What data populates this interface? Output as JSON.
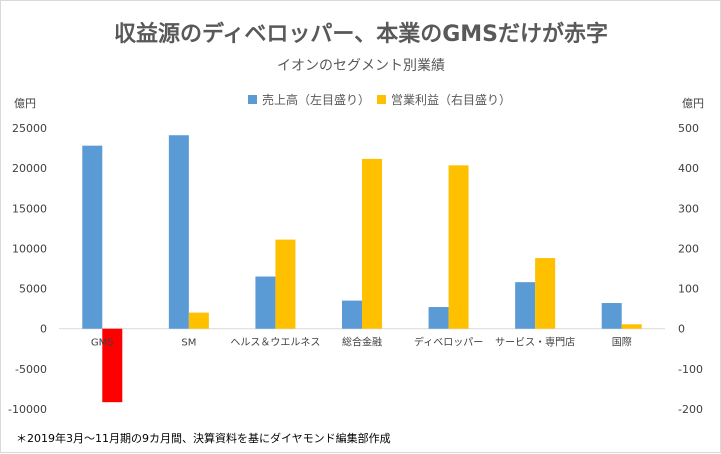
{
  "chart_data": {
    "type": "bar",
    "title": "収益源のディベロッパー、本業のGMSだけが赤字",
    "subtitle": "イオンのセグメント別業績",
    "left_unit": "億円",
    "right_unit": "億円",
    "categories": [
      "GMS",
      "SM",
      "ヘルス＆ウエルネス",
      "総合金融",
      "ディベロッパー",
      "サービス・専門店",
      "国際"
    ],
    "series": [
      {
        "name": "売上高（左目盛り）",
        "axis": "left",
        "color": "#5B9BD5",
        "values": [
          22800,
          24100,
          6500,
          3500,
          2700,
          5800,
          3200
        ]
      },
      {
        "name": "営業利益（右目盛り）",
        "axis": "right",
        "color": "#FFC000",
        "values": [
          -183,
          40,
          222,
          423,
          407,
          176,
          11
        ]
      }
    ],
    "negative_color": "#FF0000",
    "left_axis": {
      "min": -10000,
      "max": 25000,
      "step": 5000,
      "ticks": [
        "25000",
        "20000",
        "15000",
        "10000",
        "5000",
        "0",
        "-5000",
        "-10000"
      ]
    },
    "right_axis": {
      "min": -200,
      "max": 500,
      "step": 100,
      "ticks": [
        "500",
        "400",
        "300",
        "200",
        "100",
        "0",
        "-100",
        "-200"
      ]
    },
    "legend_position": "top-center",
    "footnote": "＊2019年3月～11月期の9カ月間、決算資料を基にダイヤモンド編集部作成"
  }
}
